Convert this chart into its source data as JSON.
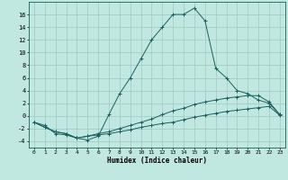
{
  "xlabel": "Humidex (Indice chaleur)",
  "bg_color": "#c0e8e0",
  "grid_color": "#a0c8c0",
  "line_color": "#1a6060",
  "x_ticks": [
    0,
    1,
    2,
    3,
    4,
    5,
    6,
    7,
    8,
    9,
    10,
    11,
    12,
    13,
    14,
    15,
    16,
    17,
    18,
    19,
    20,
    21,
    22,
    23
  ],
  "y_ticks": [
    -4,
    -2,
    0,
    2,
    4,
    6,
    8,
    10,
    12,
    14,
    16
  ],
  "ylim": [
    -5,
    18
  ],
  "xlim": [
    -0.5,
    23.5
  ],
  "s1": [
    -1.0,
    -1.5,
    -2.8,
    -3.0,
    -3.5,
    -3.8,
    -3.2,
    0.2,
    3.5,
    6.0,
    9.0,
    12.0,
    14.0,
    16.0,
    16.0,
    17.0,
    15.0,
    7.5,
    6.0,
    4.0,
    3.5,
    2.5,
    2.0,
    0.2
  ],
  "s2": [
    -1.0,
    -1.8,
    -2.5,
    -2.8,
    -3.5,
    -3.2,
    -2.8,
    -2.5,
    -2.0,
    -1.5,
    -1.0,
    -0.5,
    0.2,
    0.8,
    1.2,
    1.8,
    2.2,
    2.5,
    2.8,
    3.0,
    3.2,
    3.2,
    2.2,
    0.2
  ],
  "s3": [
    -1.0,
    -1.8,
    -2.5,
    -2.8,
    -3.5,
    -3.2,
    -3.0,
    -2.8,
    -2.5,
    -2.2,
    -1.8,
    -1.5,
    -1.2,
    -1.0,
    -0.6,
    -0.2,
    0.1,
    0.4,
    0.7,
    0.9,
    1.1,
    1.3,
    1.5,
    0.1
  ]
}
